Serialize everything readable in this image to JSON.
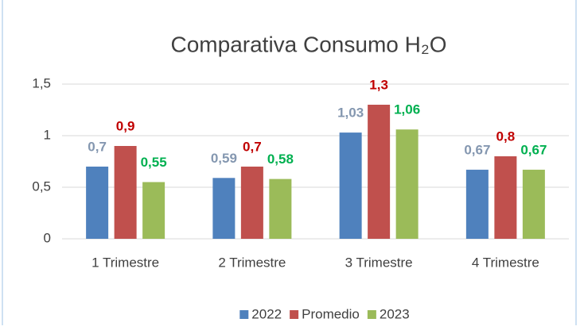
{
  "chart_data": {
    "type": "bar",
    "title": "Comparativa Consumo H₂O",
    "categories": [
      "1 Trimestre",
      "2 Trimestre",
      "3 Trimestre",
      "4 Trimestre"
    ],
    "series": [
      {
        "name": "2022",
        "color": "#4f81bd",
        "label_color": "#8497b0",
        "values": [
          0.7,
          0.59,
          1.03,
          0.67
        ],
        "value_labels": [
          "0,7",
          "0,59",
          "1,03",
          "0,67"
        ]
      },
      {
        "name": "Promedio",
        "color": "#c0504d",
        "label_color": "#c00000",
        "values": [
          0.9,
          0.7,
          1.3,
          0.8
        ],
        "value_labels": [
          "0,9",
          "0,7",
          "1,3",
          "0,8"
        ]
      },
      {
        "name": "2023",
        "color": "#9bbb59",
        "label_color": "#00b050",
        "values": [
          0.55,
          0.58,
          1.06,
          0.67
        ],
        "value_labels": [
          "0,55",
          "0,58",
          "1,06",
          "0,67"
        ]
      }
    ],
    "ylim": [
      0,
      1.5
    ],
    "yticks": [
      0,
      {
        "value": 0.5,
        "label": "0,5"
      },
      1,
      {
        "value": 1.5,
        "label": "1,5"
      }
    ],
    "grid": true,
    "legend": "bottom"
  }
}
